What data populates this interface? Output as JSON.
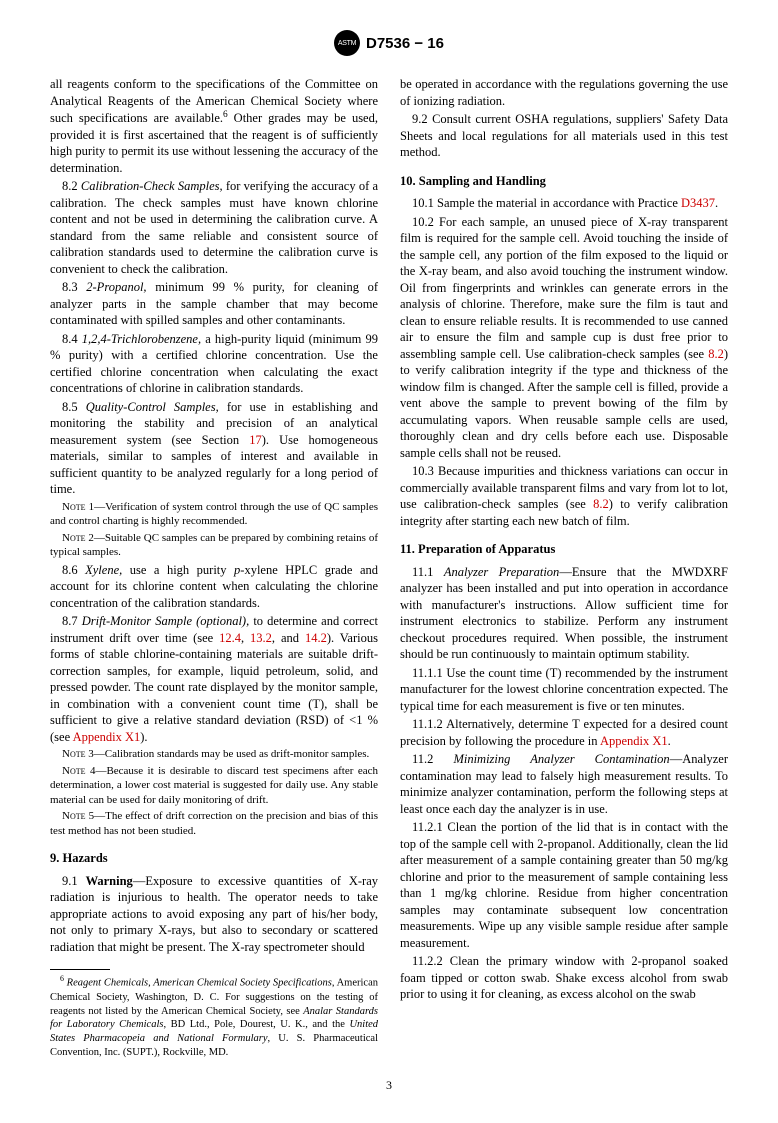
{
  "header": {
    "logo_text": "ASTM",
    "doc_id": "D7536 − 16"
  },
  "col1": {
    "p1": "all reagents conform to the specifications of the Committee on Analytical Reagents of the American Chemical Society where such specifications are available.",
    "p1_fn": "6",
    "p1b": " Other grades may be used, provided it is first ascertained that the reagent is of sufficiently high purity to permit its use without lessening the accuracy of the determination.",
    "p82a": "8.2 ",
    "p82b": "Calibration-Check Samples,",
    "p82c": " for verifying the accuracy of a calibration. The check samples must have known chlorine content and not be used in determining the calibration curve. A standard from the same reliable and consistent source of calibration standards used to determine the calibration curve is convenient to check the calibration.",
    "p83a": "8.3 ",
    "p83b": "2-Propanol,",
    "p83c": " minimum 99 % purity, for cleaning of analyzer parts in the sample chamber that may become contaminated with spilled samples and other contaminants.",
    "p84a": "8.4 ",
    "p84b": "1,2,4-Trichlorobenzene,",
    "p84c": " a high-purity liquid (minimum 99 % purity) with a certified chlorine concentration. Use the certified chlorine concentration when calculating the exact concentrations of chlorine in calibration standards.",
    "p85a": "8.5 ",
    "p85b": "Quality-Control Samples,",
    "p85c": " for use in establishing and monitoring the stability and precision of an analytical measurement system (see Section ",
    "p85d": "17",
    "p85e": "). Use homogeneous materials, similar to samples of interest and available in sufficient quantity to be analyzed regularly for a long period of time.",
    "note1a": "Note",
    "note1b": " 1—Verification of system control through the use of QC samples and control charting is highly recommended.",
    "note2a": "Note",
    "note2b": " 2—Suitable QC samples can be prepared by combining retains of typical samples.",
    "p86a": "8.6 ",
    "p86b": "Xylene,",
    "p86c": " use a high purity ",
    "p86d": "p",
    "p86e": "-xylene HPLC grade and account for its chlorine content when calculating the chlorine concentration of the calibration standards.",
    "p87a": "8.7 ",
    "p87b": "Drift-Monitor Sample (optional),",
    "p87c": " to determine and correct instrument drift over time (see ",
    "p87d": "12.4",
    "p87e": ", ",
    "p87f": "13.2",
    "p87g": ", and ",
    "p87h": "14.2",
    "p87i": "). Various forms of stable chlorine-containing materials are suitable drift-correction samples, for example, liquid petroleum, solid, and pressed powder. The count rate displayed by the monitor sample, in combination with a convenient count time (T), shall be sufficient to give a relative standard deviation (RSD) of <1 % (see ",
    "p87j": "Appendix X1",
    "p87k": ").",
    "note3a": "Note",
    "note3b": " 3—Calibration standards may be used as drift-monitor samples.",
    "note4a": "Note",
    "note4b": " 4—Because it is desirable to discard test specimens after each determination, a lower cost material is suggested for daily use. Any stable material can be used for daily monitoring of drift.",
    "note5a": "Note",
    "note5b": " 5—The effect of drift correction on the precision and bias of this test method has not been studied.",
    "h9": "9. Hazards",
    "p91a": "9.1 ",
    "p91b": "Warning",
    "p91c": "—Exposure to excessive quantities of X-ray radiation is injurious to health. The operator needs to take appropriate actions to avoid exposing any part of his/her body, not only to primary X-rays, but also to secondary or scattered radiation that might be present. The X-ray spectrometer should",
    "fn6_num": "6",
    "fn6a": " Reagent Chemicals, American Chemical Society Specifications",
    "fn6b": ", American Chemical Society, Washington, D. C. For suggestions on the testing of reagents not listed by the American Chemical Society, see ",
    "fn6c": "Analar Standards for Laboratory Chemicals",
    "fn6d": ", BD Ltd., Pole, Dourest, U. K., and the ",
    "fn6e": "United States Pharmacopeia and National Formulary",
    "fn6f": ", U. S. Pharmaceutical Convention, Inc. (SUPT.), Rockville, MD."
  },
  "col2": {
    "p91d": "be operated in accordance with the regulations governing the use of ionizing radiation.",
    "p92": "9.2 Consult current OSHA regulations, suppliers' Safety Data Sheets and local regulations for all materials used in this test method.",
    "h10": "10. Sampling and Handling",
    "p101a": "10.1 Sample the material in accordance with Practice ",
    "p101b": "D3437",
    "p101c": ".",
    "p102a": "10.2 For each sample, an unused piece of X-ray transparent film is required for the sample cell. Avoid touching the inside of the sample cell, any portion of the film exposed to the liquid or the X-ray beam, and also avoid touching the instrument window. Oil from fingerprints and wrinkles can generate errors in the analysis of chlorine. Therefore, make sure the film is taut and clean to ensure reliable results. It is recommended to use canned air to ensure the film and sample cup is dust free prior to assembling sample cell. Use calibration-check samples (see ",
    "p102b": "8.2",
    "p102c": ") to verify calibration integrity if the type and thickness of the window film is changed. After the sample cell is filled, provide a vent above the sample to prevent bowing of the film by accumulating vapors. When reusable sample cells are used, thoroughly clean and dry cells before each use. Disposable sample cells shall not be reused.",
    "p103a": "10.3 Because impurities and thickness variations can occur in commercially available transparent films and vary from lot to lot, use calibration-check samples (see ",
    "p103b": "8.2",
    "p103c": ") to verify calibration integrity after starting each new batch of film.",
    "h11": "11. Preparation of Apparatus",
    "p111a": "11.1 ",
    "p111b": "Analyzer Preparation",
    "p111c": "—Ensure that the MWDXRF analyzer has been installed and put into operation in accordance with manufacturer's instructions. Allow sufficient time for instrument electronics to stabilize. Perform any instrument checkout procedures required. When possible, the instrument should be run continuously to maintain optimum stability.",
    "p1111": "11.1.1 Use the count time (T) recommended by the instrument manufacturer for the lowest chlorine concentration expected. The typical time for each measurement is five or ten minutes.",
    "p1112a": "11.1.2 Alternatively, determine T expected for a desired count precision by following the procedure in ",
    "p1112b": "Appendix X1",
    "p1112c": ".",
    "p112a": "11.2 ",
    "p112b": "Minimizing Analyzer Contamination",
    "p112c": "—Analyzer contamination may lead to falsely high measurement results. To minimize analyzer contamination, perform the following steps at least once each day the analyzer is in use.",
    "p1121": "11.2.1 Clean the portion of the lid that is in contact with the top of the sample cell with 2-propanol. Additionally, clean the lid after measurement of a sample containing greater than 50 mg/kg chlorine and prior to the measurement of sample containing less than 1 mg/kg chlorine. Residue from higher concentration samples may contaminate subsequent low concentration measurements. Wipe up any visible sample residue after sample measurement.",
    "p1122": "11.2.2 Clean the primary window with 2-propanol soaked foam tipped or cotton swab. Shake excess alcohol from swab prior to using it for cleaning, as excess alcohol on the swab"
  },
  "pagenum": "3"
}
